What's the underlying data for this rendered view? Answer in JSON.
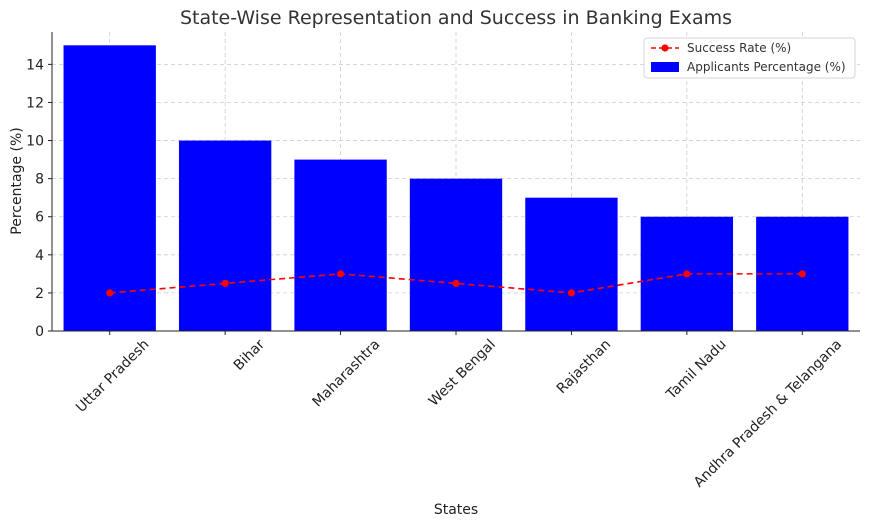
{
  "chart_data": {
    "type": "bar",
    "title": "State-Wise Representation and Success in Banking Exams",
    "xlabel": "States",
    "ylabel": "Percentage (%)",
    "categories": [
      "Uttar Pradesh",
      "Bihar",
      "Maharashtra",
      "West Bengal",
      "Rajasthan",
      "Tamil Nadu",
      "Andhra Pradesh & Telangana"
    ],
    "series": [
      {
        "name": "Applicants Percentage (%)",
        "type": "bar",
        "color": "#0000ff",
        "values": [
          15,
          10,
          9,
          8,
          7,
          6,
          6
        ]
      },
      {
        "name": "Success Rate (%)",
        "type": "line",
        "style": "dashed",
        "marker": "circle",
        "color": "#ff0000",
        "values": [
          2,
          2.5,
          3,
          2.5,
          2,
          3,
          3
        ]
      }
    ],
    "ylim": [
      0,
      15.7
    ],
    "yticks": [
      0,
      2,
      4,
      6,
      8,
      10,
      12,
      14
    ],
    "grid": true,
    "legend_position": "top-right"
  }
}
